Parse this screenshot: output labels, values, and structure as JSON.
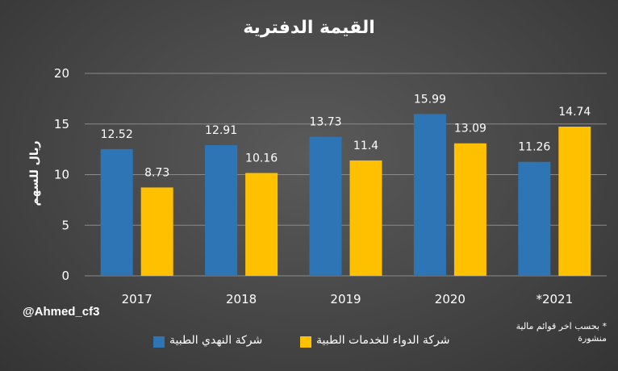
{
  "handle": "@Ahmed_cf3",
  "footnote": "* بحسب اخر قوائم مالية منشورة",
  "colors": {
    "series1": "#2e75b6",
    "series2": "#ffc000",
    "grid": "#8a8a8a"
  },
  "chart_data": {
    "type": "bar",
    "title": "القيمة الدفترية",
    "xlabel": "",
    "ylabel": "ريال للسهم",
    "categories": [
      "2017",
      "2018",
      "2019",
      "2020",
      "*2021"
    ],
    "ylim": [
      0,
      20
    ],
    "yticks": [
      0,
      5,
      10,
      15,
      20
    ],
    "grid": true,
    "legend": "bottom",
    "series": [
      {
        "name": "شركة النهدي الطبية",
        "values": [
          12.52,
          12.91,
          13.73,
          15.99,
          11.26
        ],
        "labels": [
          "12.52",
          "12.91",
          "13.73",
          "15.99",
          "11.26"
        ]
      },
      {
        "name": "شركة الدواء للخدمات الطبية",
        "values": [
          8.73,
          10.16,
          11.4,
          13.09,
          14.74
        ],
        "labels": [
          "8.73",
          "10.16",
          "11.4",
          "13.09",
          "14.74"
        ]
      }
    ]
  }
}
